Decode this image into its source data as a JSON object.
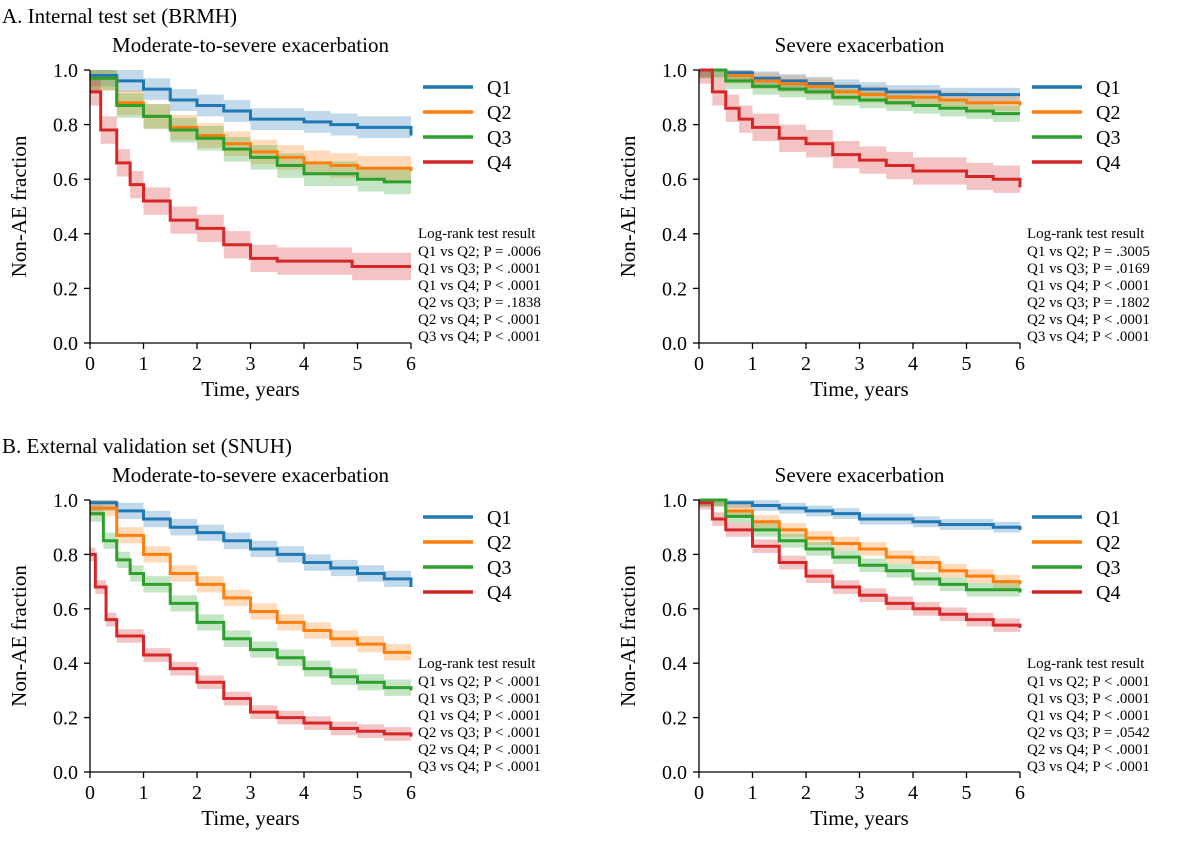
{
  "figure": {
    "section_a_title": "A. Internal test set (BRMH)",
    "section_b_title": "B. External validation set (SNUH)"
  },
  "colors": {
    "Q1": "#1f77b4",
    "Q2": "#ff7f0e",
    "Q3": "#2ca02c",
    "Q4": "#d62728"
  },
  "chart_data": [
    {
      "id": "A-left",
      "type": "line",
      "title": "Moderate-to-severe exacerbation",
      "xlabel": "Time, years",
      "ylabel": "Non-AE fraction",
      "xlim": [
        0,
        6
      ],
      "ylim": [
        0,
        1
      ],
      "xticks": [
        "0",
        "1",
        "2",
        "3",
        "4",
        "5",
        "6"
      ],
      "yticks": [
        "0.0",
        "0.2",
        "0.4",
        "0.6",
        "0.8",
        "1.0"
      ],
      "grid": false,
      "legend_position": "right",
      "stat_title": "Log-rank test result",
      "stats": [
        "Q1 vs Q2; P = .0006",
        "Q1 vs Q3; P < .0001",
        "Q1 vs Q4; P < .0001",
        "Q2 vs Q3; P = .1838",
        "Q2 vs Q4; P < .0001",
        "Q3 vs Q4; P < .0001"
      ],
      "series": [
        {
          "name": "Q1",
          "ci_width": 0.04,
          "points": [
            [
              0,
              0.98
            ],
            [
              0.5,
              0.96
            ],
            [
              1,
              0.93
            ],
            [
              1.5,
              0.89
            ],
            [
              2,
              0.87
            ],
            [
              2.5,
              0.85
            ],
            [
              3,
              0.82
            ],
            [
              3.5,
              0.82
            ],
            [
              4,
              0.81
            ],
            [
              4.5,
              0.8
            ],
            [
              5,
              0.79
            ],
            [
              5.5,
              0.79
            ],
            [
              6,
              0.76
            ]
          ]
        },
        {
          "name": "Q2",
          "ci_width": 0.045,
          "points": [
            [
              0,
              0.97
            ],
            [
              0.5,
              0.88
            ],
            [
              1,
              0.83
            ],
            [
              1.5,
              0.79
            ],
            [
              2,
              0.76
            ],
            [
              2.5,
              0.73
            ],
            [
              3,
              0.7
            ],
            [
              3.5,
              0.68
            ],
            [
              4,
              0.66
            ],
            [
              4.5,
              0.65
            ],
            [
              5,
              0.64
            ],
            [
              5.5,
              0.64
            ],
            [
              6,
              0.63
            ]
          ]
        },
        {
          "name": "Q3",
          "ci_width": 0.045,
          "points": [
            [
              0,
              0.97
            ],
            [
              0.5,
              0.87
            ],
            [
              1,
              0.83
            ],
            [
              1.5,
              0.78
            ],
            [
              2,
              0.75
            ],
            [
              2.5,
              0.71
            ],
            [
              3,
              0.68
            ],
            [
              3.5,
              0.65
            ],
            [
              4,
              0.62
            ],
            [
              4.5,
              0.62
            ],
            [
              5,
              0.6
            ],
            [
              5.5,
              0.59
            ],
            [
              6,
              0.59
            ]
          ]
        },
        {
          "name": "Q4",
          "ci_width": 0.05,
          "points": [
            [
              0,
              0.92
            ],
            [
              0.2,
              0.78
            ],
            [
              0.5,
              0.66
            ],
            [
              0.75,
              0.58
            ],
            [
              1,
              0.52
            ],
            [
              1.5,
              0.45
            ],
            [
              2,
              0.42
            ],
            [
              2.5,
              0.36
            ],
            [
              3,
              0.31
            ],
            [
              3.5,
              0.3
            ],
            [
              4,
              0.3
            ],
            [
              4.5,
              0.3
            ],
            [
              4.85,
              0.3
            ],
            [
              4.9,
              0.28
            ],
            [
              6,
              0.28
            ]
          ]
        }
      ]
    },
    {
      "id": "A-right",
      "type": "line",
      "title": "Severe exacerbation",
      "xlabel": "Time, years",
      "ylabel": "Non-AE fraction",
      "xlim": [
        0,
        6
      ],
      "ylim": [
        0,
        1
      ],
      "xticks": [
        "0",
        "1",
        "2",
        "3",
        "4",
        "5",
        "6"
      ],
      "yticks": [
        "0.0",
        "0.2",
        "0.4",
        "0.6",
        "0.8",
        "1.0"
      ],
      "grid": false,
      "legend_position": "right",
      "stat_title": "Log-rank test result",
      "stats": [
        "Q1 vs Q2; P = .3005",
        "Q1 vs Q3; P = .0169",
        "Q1 vs Q4; P < .0001",
        "Q2 vs Q3; P = .1802",
        "Q2 vs Q4; P < .0001",
        "Q3 vs Q4; P < .0001"
      ],
      "series": [
        {
          "name": "Q1",
          "ci_width": 0.025,
          "points": [
            [
              0,
              1.0
            ],
            [
              0.5,
              0.99
            ],
            [
              1,
              0.97
            ],
            [
              1.5,
              0.96
            ],
            [
              2,
              0.95
            ],
            [
              2.5,
              0.94
            ],
            [
              3,
              0.93
            ],
            [
              3.5,
              0.92
            ],
            [
              4,
              0.92
            ],
            [
              4.5,
              0.91
            ],
            [
              5,
              0.91
            ],
            [
              5.5,
              0.91
            ],
            [
              6,
              0.91
            ]
          ]
        },
        {
          "name": "Q2",
          "ci_width": 0.03,
          "points": [
            [
              0,
              1.0
            ],
            [
              0.5,
              0.98
            ],
            [
              1,
              0.96
            ],
            [
              1.5,
              0.95
            ],
            [
              2,
              0.94
            ],
            [
              2.5,
              0.92
            ],
            [
              3,
              0.91
            ],
            [
              3.5,
              0.9
            ],
            [
              4,
              0.9
            ],
            [
              4.5,
              0.89
            ],
            [
              5,
              0.88
            ],
            [
              5.5,
              0.88
            ],
            [
              6,
              0.87
            ]
          ]
        },
        {
          "name": "Q3",
          "ci_width": 0.03,
          "points": [
            [
              0,
              1.0
            ],
            [
              0.5,
              0.96
            ],
            [
              1,
              0.94
            ],
            [
              1.5,
              0.93
            ],
            [
              2,
              0.92
            ],
            [
              2.5,
              0.9
            ],
            [
              3,
              0.89
            ],
            [
              3.5,
              0.88
            ],
            [
              4,
              0.87
            ],
            [
              4.5,
              0.86
            ],
            [
              5,
              0.85
            ],
            [
              5.5,
              0.84
            ],
            [
              6,
              0.84
            ]
          ]
        },
        {
          "name": "Q4",
          "ci_width": 0.05,
          "points": [
            [
              0,
              1.0
            ],
            [
              0.25,
              0.92
            ],
            [
              0.5,
              0.86
            ],
            [
              0.75,
              0.82
            ],
            [
              1,
              0.79
            ],
            [
              1.5,
              0.75
            ],
            [
              2,
              0.73
            ],
            [
              2.5,
              0.69
            ],
            [
              3,
              0.67
            ],
            [
              3.5,
              0.65
            ],
            [
              4,
              0.63
            ],
            [
              4.5,
              0.63
            ],
            [
              5,
              0.61
            ],
            [
              5.5,
              0.6
            ],
            [
              6,
              0.57
            ]
          ]
        }
      ]
    },
    {
      "id": "B-left",
      "type": "line",
      "title": "Moderate-to-severe exacerbation",
      "xlabel": "Time, years",
      "ylabel": "Non-AE fraction",
      "xlim": [
        0,
        6
      ],
      "ylim": [
        0,
        1
      ],
      "xticks": [
        "0",
        "1",
        "2",
        "3",
        "4",
        "5",
        "6"
      ],
      "yticks": [
        "0.0",
        "0.2",
        "0.4",
        "0.6",
        "0.8",
        "1.0"
      ],
      "grid": false,
      "legend_position": "right",
      "stat_title": "Log-rank test result",
      "stats": [
        "Q1 vs Q2; P < .0001",
        "Q1 vs Q3; P < .0001",
        "Q1 vs Q4; P < .0001",
        "Q2 vs Q3; P < .0001",
        "Q2 vs Q4; P < .0001",
        "Q3 vs Q4; P < .0001"
      ],
      "series": [
        {
          "name": "Q1",
          "ci_width": 0.03,
          "points": [
            [
              0,
              0.99
            ],
            [
              0.5,
              0.96
            ],
            [
              1,
              0.93
            ],
            [
              1.5,
              0.9
            ],
            [
              2,
              0.88
            ],
            [
              2.5,
              0.85
            ],
            [
              3,
              0.82
            ],
            [
              3.5,
              0.8
            ],
            [
              4,
              0.77
            ],
            [
              4.5,
              0.75
            ],
            [
              5,
              0.73
            ],
            [
              5.5,
              0.71
            ],
            [
              6,
              0.68
            ]
          ]
        },
        {
          "name": "Q2",
          "ci_width": 0.03,
          "points": [
            [
              0,
              0.97
            ],
            [
              0.5,
              0.87
            ],
            [
              1,
              0.8
            ],
            [
              1.5,
              0.73
            ],
            [
              2,
              0.69
            ],
            [
              2.5,
              0.64
            ],
            [
              3,
              0.59
            ],
            [
              3.5,
              0.55
            ],
            [
              4,
              0.52
            ],
            [
              4.5,
              0.49
            ],
            [
              5,
              0.47
            ],
            [
              5.5,
              0.44
            ],
            [
              6,
              0.44
            ]
          ]
        },
        {
          "name": "Q3",
          "ci_width": 0.03,
          "points": [
            [
              0,
              0.95
            ],
            [
              0.25,
              0.85
            ],
            [
              0.5,
              0.78
            ],
            [
              0.75,
              0.73
            ],
            [
              1,
              0.69
            ],
            [
              1.5,
              0.62
            ],
            [
              2,
              0.55
            ],
            [
              2.5,
              0.49
            ],
            [
              3,
              0.45
            ],
            [
              3.5,
              0.42
            ],
            [
              4,
              0.38
            ],
            [
              4.5,
              0.35
            ],
            [
              5,
              0.33
            ],
            [
              5.5,
              0.31
            ],
            [
              6,
              0.3
            ]
          ]
        },
        {
          "name": "Q4",
          "ci_width": 0.025,
          "points": [
            [
              0,
              0.8
            ],
            [
              0.1,
              0.68
            ],
            [
              0.3,
              0.56
            ],
            [
              0.5,
              0.5
            ],
            [
              1,
              0.43
            ],
            [
              1.5,
              0.38
            ],
            [
              2,
              0.33
            ],
            [
              2.5,
              0.27
            ],
            [
              3,
              0.22
            ],
            [
              3.5,
              0.2
            ],
            [
              4,
              0.18
            ],
            [
              4.5,
              0.16
            ],
            [
              5,
              0.15
            ],
            [
              5.5,
              0.14
            ],
            [
              6,
              0.13
            ]
          ]
        }
      ]
    },
    {
      "id": "B-right",
      "type": "line",
      "title": "Severe exacerbation",
      "xlabel": "Time, years",
      "ylabel": "Non-AE fraction",
      "xlim": [
        0,
        6
      ],
      "ylim": [
        0,
        1
      ],
      "xticks": [
        "0",
        "1",
        "2",
        "3",
        "4",
        "5",
        "6"
      ],
      "yticks": [
        "0.0",
        "0.2",
        "0.4",
        "0.6",
        "0.8",
        "1.0"
      ],
      "grid": false,
      "legend_position": "right",
      "stat_title": "Log-rank test result",
      "stats": [
        "Q1 vs Q2; P < .0001",
        "Q1 vs Q3; P < .0001",
        "Q1 vs Q4; P < .0001",
        "Q2 vs Q3; P = .0542",
        "Q2 vs Q4; P < .0001",
        "Q3 vs Q4; P < .0001"
      ],
      "series": [
        {
          "name": "Q1",
          "ci_width": 0.02,
          "points": [
            [
              0,
              1.0
            ],
            [
              0.5,
              0.99
            ],
            [
              1,
              0.98
            ],
            [
              1.5,
              0.97
            ],
            [
              2,
              0.96
            ],
            [
              2.5,
              0.95
            ],
            [
              3,
              0.93
            ],
            [
              3.5,
              0.93
            ],
            [
              4,
              0.92
            ],
            [
              4.5,
              0.91
            ],
            [
              5,
              0.91
            ],
            [
              5.5,
              0.9
            ],
            [
              6,
              0.89
            ]
          ]
        },
        {
          "name": "Q2",
          "ci_width": 0.025,
          "points": [
            [
              0,
              1.0
            ],
            [
              0.5,
              0.96
            ],
            [
              1,
              0.92
            ],
            [
              1.5,
              0.89
            ],
            [
              2,
              0.86
            ],
            [
              2.5,
              0.84
            ],
            [
              3,
              0.82
            ],
            [
              3.5,
              0.79
            ],
            [
              4,
              0.77
            ],
            [
              4.5,
              0.74
            ],
            [
              5,
              0.72
            ],
            [
              5.5,
              0.7
            ],
            [
              6,
              0.69
            ]
          ]
        },
        {
          "name": "Q3",
          "ci_width": 0.025,
          "points": [
            [
              0,
              1.0
            ],
            [
              0.5,
              0.94
            ],
            [
              1,
              0.89
            ],
            [
              1.5,
              0.85
            ],
            [
              2,
              0.82
            ],
            [
              2.5,
              0.79
            ],
            [
              3,
              0.76
            ],
            [
              3.5,
              0.74
            ],
            [
              4,
              0.71
            ],
            [
              4.5,
              0.69
            ],
            [
              5,
              0.67
            ],
            [
              5.5,
              0.67
            ],
            [
              6,
              0.66
            ]
          ]
        },
        {
          "name": "Q4",
          "ci_width": 0.025,
          "points": [
            [
              0,
              0.99
            ],
            [
              0.25,
              0.93
            ],
            [
              0.5,
              0.89
            ],
            [
              1,
              0.83
            ],
            [
              1.5,
              0.77
            ],
            [
              2,
              0.72
            ],
            [
              2.5,
              0.68
            ],
            [
              3,
              0.65
            ],
            [
              3.5,
              0.62
            ],
            [
              4,
              0.6
            ],
            [
              4.5,
              0.58
            ],
            [
              5,
              0.56
            ],
            [
              5.5,
              0.54
            ],
            [
              6,
              0.53
            ]
          ]
        }
      ]
    }
  ]
}
